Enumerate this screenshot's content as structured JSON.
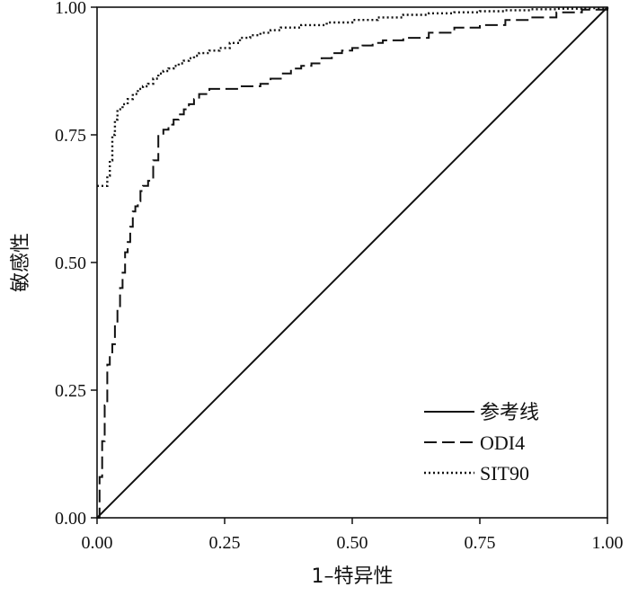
{
  "chart_data": {
    "type": "line",
    "title": "",
    "xlabel": "1–特异性",
    "ylabel": "敏感性",
    "xlim": [
      0,
      1
    ],
    "ylim": [
      0,
      1
    ],
    "xticks": [
      "0.00",
      "0.25",
      "0.50",
      "0.75",
      "1.00"
    ],
    "yticks": [
      "0.00",
      "0.25",
      "0.50",
      "0.75",
      "1.00"
    ],
    "grid": false,
    "legend_position": "bottom-right",
    "series": [
      {
        "name": "参考线",
        "style": "solid",
        "x": [
          0,
          1
        ],
        "y": [
          0,
          1
        ]
      },
      {
        "name": "ODI4",
        "style": "dashed",
        "x": [
          0.0,
          0.005,
          0.01,
          0.015,
          0.02,
          0.025,
          0.03,
          0.035,
          0.04,
          0.045,
          0.05,
          0.055,
          0.06,
          0.065,
          0.07,
          0.075,
          0.08,
          0.085,
          0.09,
          0.095,
          0.1,
          0.11,
          0.12,
          0.13,
          0.14,
          0.15,
          0.16,
          0.17,
          0.18,
          0.19,
          0.2,
          0.22,
          0.24,
          0.26,
          0.28,
          0.3,
          0.32,
          0.34,
          0.36,
          0.38,
          0.4,
          0.42,
          0.44,
          0.46,
          0.48,
          0.5,
          0.52,
          0.54,
          0.56,
          0.6,
          0.65,
          0.7,
          0.75,
          0.8,
          0.85,
          0.9,
          0.95,
          1.0
        ],
        "y": [
          0.0,
          0.08,
          0.15,
          0.22,
          0.3,
          0.32,
          0.34,
          0.38,
          0.41,
          0.45,
          0.48,
          0.52,
          0.54,
          0.57,
          0.6,
          0.61,
          0.62,
          0.64,
          0.65,
          0.65,
          0.66,
          0.7,
          0.75,
          0.76,
          0.77,
          0.78,
          0.79,
          0.8,
          0.81,
          0.82,
          0.83,
          0.84,
          0.84,
          0.84,
          0.845,
          0.845,
          0.85,
          0.86,
          0.87,
          0.88,
          0.885,
          0.89,
          0.9,
          0.91,
          0.915,
          0.92,
          0.925,
          0.93,
          0.935,
          0.94,
          0.95,
          0.96,
          0.965,
          0.975,
          0.98,
          0.99,
          0.995,
          1.0
        ]
      },
      {
        "name": "SIT90",
        "style": "dotted",
        "x": [
          0.0,
          0.01,
          0.02,
          0.025,
          0.03,
          0.035,
          0.04,
          0.05,
          0.06,
          0.07,
          0.08,
          0.09,
          0.1,
          0.11,
          0.12,
          0.13,
          0.14,
          0.15,
          0.16,
          0.17,
          0.18,
          0.19,
          0.2,
          0.22,
          0.24,
          0.26,
          0.28,
          0.3,
          0.32,
          0.34,
          0.36,
          0.38,
          0.4,
          0.45,
          0.5,
          0.55,
          0.6,
          0.65,
          0.7,
          0.75,
          0.8,
          0.85,
          0.9,
          0.95,
          1.0
        ],
        "y": [
          0.65,
          0.65,
          0.67,
          0.7,
          0.75,
          0.78,
          0.8,
          0.81,
          0.82,
          0.83,
          0.84,
          0.845,
          0.85,
          0.86,
          0.87,
          0.875,
          0.88,
          0.885,
          0.89,
          0.895,
          0.9,
          0.905,
          0.91,
          0.915,
          0.92,
          0.93,
          0.94,
          0.945,
          0.95,
          0.955,
          0.96,
          0.96,
          0.965,
          0.97,
          0.975,
          0.98,
          0.985,
          0.988,
          0.99,
          0.992,
          0.994,
          0.996,
          0.997,
          0.998,
          1.0
        ]
      }
    ]
  }
}
